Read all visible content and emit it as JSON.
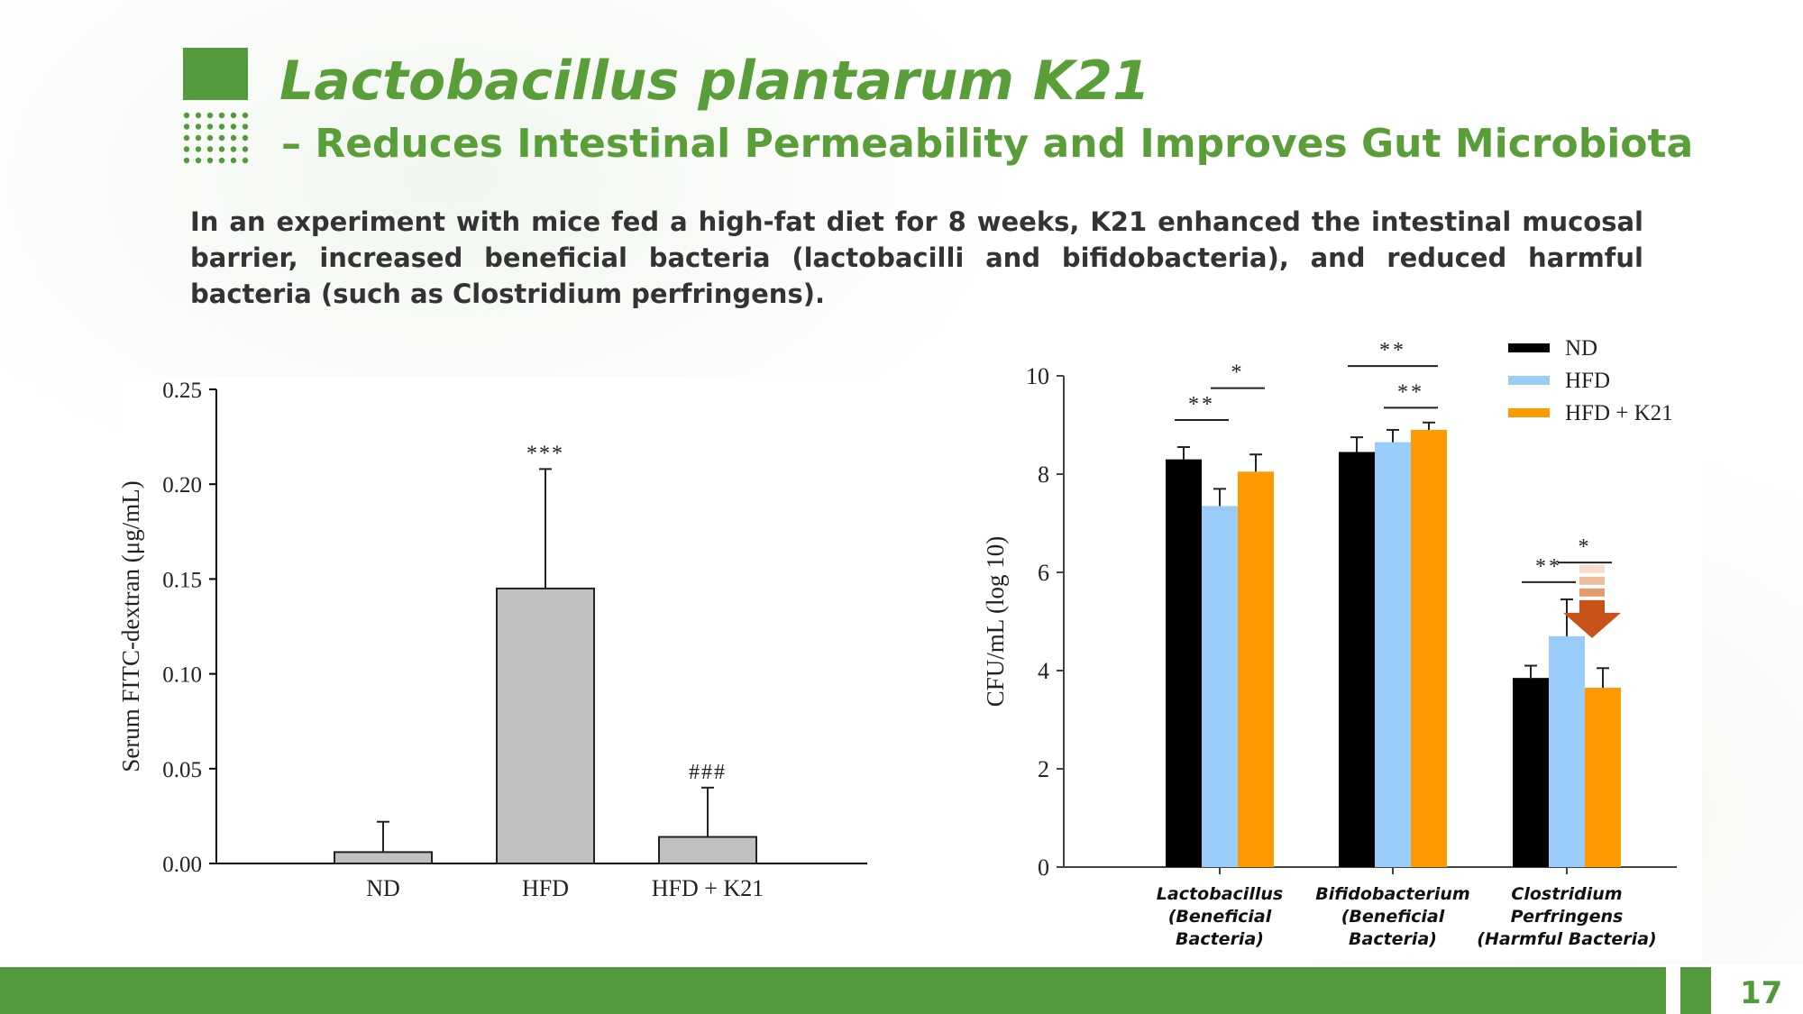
{
  "slide": {
    "title": "Lactobacillus plantarum K21",
    "subtitle": "– Reduces Intestinal Permeability and Improves Gut Microbiota",
    "description": "In an experiment with mice fed a high-fat diet for 8 weeks, K21 enhanced the intestinal mucosal barrier, increased beneficial bacteria (lactobacilli and bifidobacteria), and reduced harmful bacteria (such as Clostridium perfringens).",
    "page_number": "17",
    "colors": {
      "brand_green": "#529a3c",
      "title_green": "#5a9e3a"
    }
  },
  "chart_data": [
    {
      "type": "bar",
      "categories": [
        "ND",
        "HFD",
        "HFD + K21"
      ],
      "values": [
        0.006,
        0.145,
        0.014
      ],
      "errors": [
        0.016,
        0.063,
        0.026
      ],
      "annotations": [
        "",
        "***",
        "###"
      ],
      "xlabel": "",
      "ylabel": "Serum FITC-dextran (μg/mL)",
      "ylim": [
        0,
        0.25
      ],
      "yticks": [
        "0.00",
        "0.05",
        "0.10",
        "0.15",
        "0.20",
        "0.25"
      ],
      "bar_color": "#c0c0c0",
      "grid": false
    },
    {
      "type": "bar",
      "categories": [
        [
          "Lactobacillus",
          "(Beneficial",
          "Bacteria)"
        ],
        [
          "Bifidobacterium",
          "(Beneficial",
          "Bacteria)"
        ],
        [
          "Clostridium",
          "Perfringens",
          "(Harmful Bacteria)"
        ]
      ],
      "series": [
        {
          "name": "ND",
          "color": "#000000",
          "values": [
            8.3,
            8.45,
            3.85
          ],
          "errors": [
            0.25,
            0.3,
            0.25
          ]
        },
        {
          "name": "HFD",
          "color": "#99ccf9",
          "values": [
            7.35,
            8.65,
            4.7
          ],
          "errors": [
            0.35,
            0.25,
            0.75
          ]
        },
        {
          "name": "HFD + K21",
          "color": "#ff9900",
          "values": [
            8.05,
            8.9,
            3.65
          ],
          "errors": [
            0.35,
            0.15,
            0.4
          ]
        }
      ],
      "significance": [
        {
          "group": 0,
          "between": [
            0,
            1
          ],
          "label": "**",
          "level": 9.1
        },
        {
          "group": 0,
          "between": [
            1,
            2
          ],
          "label": "*",
          "level": 9.75
        },
        {
          "group": 1,
          "between": [
            1,
            2
          ],
          "label": "**",
          "level": 9.35
        },
        {
          "group": 1,
          "between": [
            0,
            2
          ],
          "label": "**",
          "level": 10.2
        },
        {
          "group": 2,
          "between": [
            0,
            1
          ],
          "label": "**",
          "level": 5.8
        },
        {
          "group": 2,
          "between": [
            1,
            2
          ],
          "label": "*",
          "level": 6.2
        }
      ],
      "decrease_arrow": {
        "group": 2,
        "color": "#c8531a"
      },
      "xlabel": "",
      "ylabel": "CFU/mL (log 10)",
      "ylim": [
        0,
        10
      ],
      "yticks": [
        "0",
        "2",
        "4",
        "6",
        "8",
        "10"
      ],
      "legend_position": "top-right",
      "grid": false
    }
  ]
}
